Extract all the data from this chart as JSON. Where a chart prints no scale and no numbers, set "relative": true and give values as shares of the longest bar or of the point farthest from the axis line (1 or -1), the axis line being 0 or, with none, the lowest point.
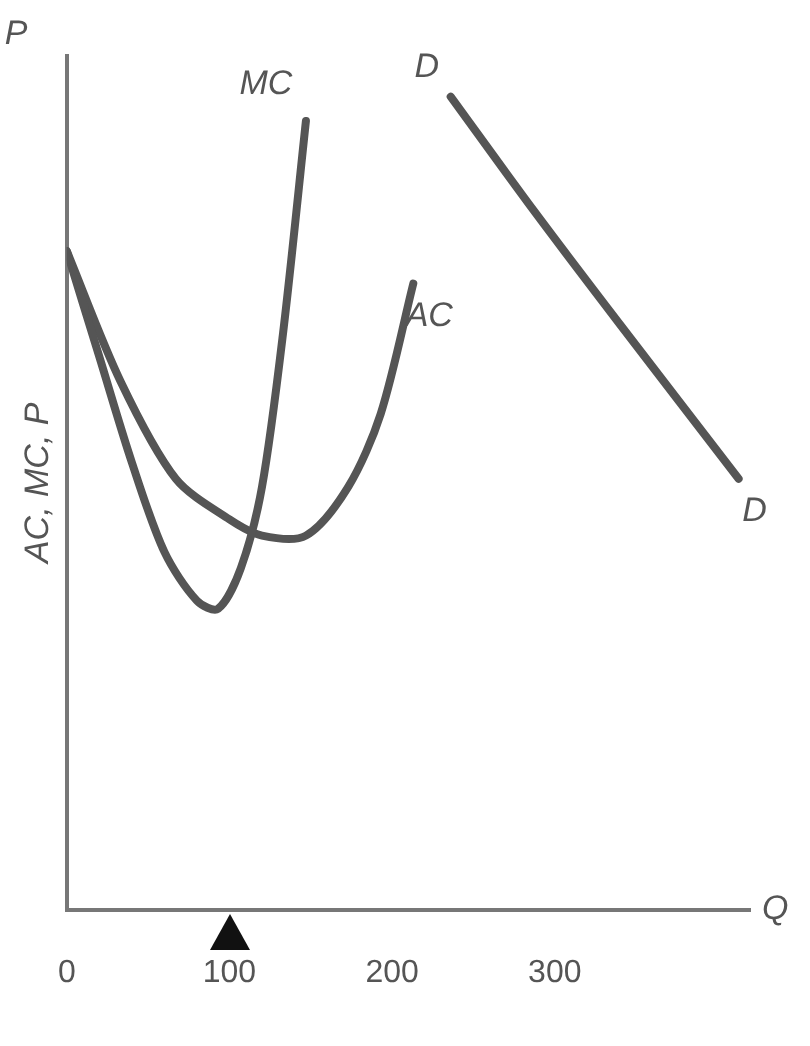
{
  "chart_data": {
    "type": "line",
    "relative": true,
    "xlabel": "Q",
    "ylabel": "AC, MC, P",
    "annotations": [
      "P",
      {
        "text": "D",
        "x": 236,
        "y": 1.0
      }
    ],
    "xlim": [
      0,
      420
    ],
    "xticks": [
      0,
      100,
      200,
      300
    ],
    "grid": false,
    "legend": false,
    "marker": "none",
    "line_style": "solid",
    "series": [
      {
        "name": "MC",
        "color": "#555555",
        "x": [
          0,
          20,
          40,
          60,
          80,
          93,
          107,
          120,
          133,
          147
        ],
        "values": [
          0.81,
          0.68,
          0.55,
          0.44,
          0.38,
          0.37,
          0.42,
          0.52,
          0.71,
          0.97
        ]
      },
      {
        "name": "AC",
        "color": "#555555",
        "x": [
          0,
          33,
          67,
          100,
          120,
          147,
          173,
          193,
          213
        ],
        "values": [
          0.81,
          0.65,
          0.53,
          0.48,
          0.46,
          0.46,
          0.52,
          0.61,
          0.77
        ]
      },
      {
        "name": "D",
        "color": "#555555",
        "x": [
          236,
          287,
          340,
          413
        ],
        "values": [
          1.0,
          0.86,
          0.72,
          0.53
        ]
      }
    ]
  }
}
